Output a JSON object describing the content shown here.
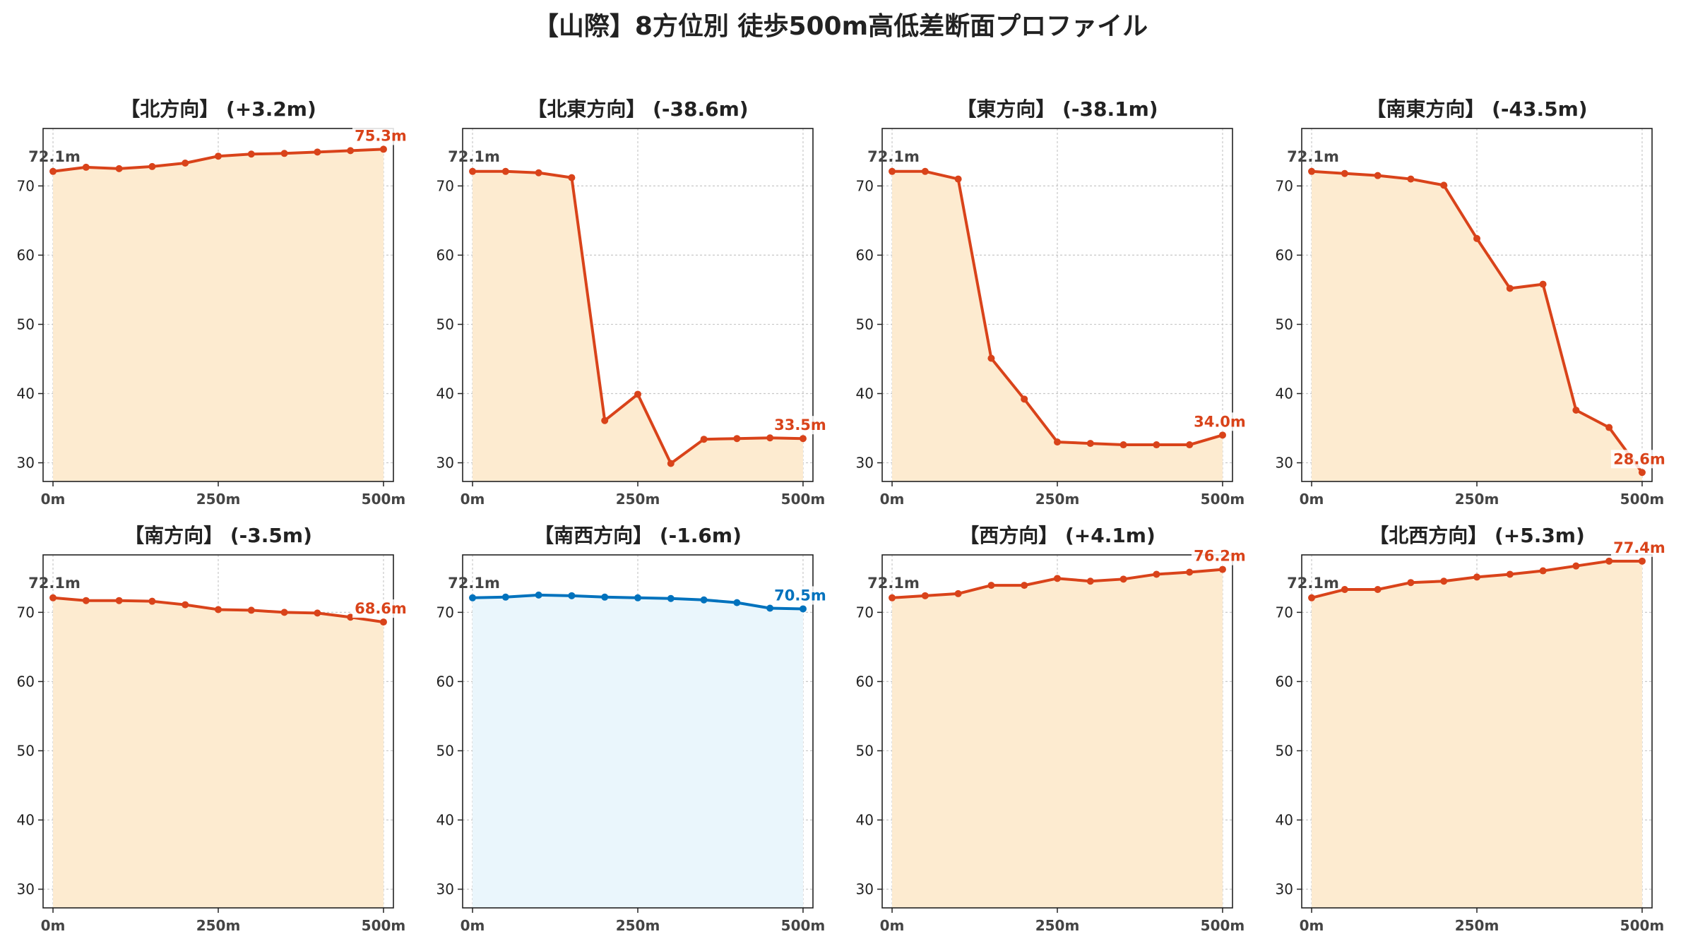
{
  "title": "【山際】8方位別 徒歩500m高低差断面プロファイル",
  "chart_data": [
    {
      "type": "line",
      "title": "【北方向】 (+3.2m)",
      "start_label": "72.1m",
      "end_label": "75.3m",
      "color": "#d9431a",
      "fill": "#fdebd0",
      "x": [
        0,
        50,
        100,
        150,
        200,
        250,
        300,
        350,
        400,
        450,
        500
      ],
      "values": [
        72.1,
        72.7,
        72.5,
        72.8,
        73.3,
        74.3,
        74.6,
        74.7,
        74.9,
        75.1,
        75.3
      ]
    },
    {
      "type": "line",
      "title": "【北東方向】 (-38.6m)",
      "start_label": "72.1m",
      "end_label": "33.5m",
      "color": "#d9431a",
      "fill": "#fdebd0",
      "x": [
        0,
        50,
        100,
        150,
        200,
        250,
        300,
        350,
        400,
        450,
        500
      ],
      "values": [
        72.1,
        72.1,
        71.9,
        71.2,
        36.1,
        39.9,
        29.9,
        33.4,
        33.5,
        33.6,
        33.5
      ]
    },
    {
      "type": "line",
      "title": "【東方向】 (-38.1m)",
      "start_label": "72.1m",
      "end_label": "34.0m",
      "color": "#d9431a",
      "fill": "#fdebd0",
      "x": [
        0,
        50,
        100,
        150,
        200,
        250,
        300,
        350,
        400,
        450,
        500
      ],
      "values": [
        72.1,
        72.1,
        71.0,
        45.1,
        39.2,
        33.0,
        32.8,
        32.6,
        32.6,
        32.6,
        34.0
      ]
    },
    {
      "type": "line",
      "title": "【南東方向】 (-43.5m)",
      "start_label": "72.1m",
      "end_label": "28.6m",
      "color": "#d9431a",
      "fill": "#fdebd0",
      "x": [
        0,
        50,
        100,
        150,
        200,
        250,
        300,
        350,
        400,
        450,
        500
      ],
      "values": [
        72.1,
        71.8,
        71.5,
        71.0,
        70.1,
        62.4,
        55.2,
        55.8,
        37.6,
        35.1,
        28.6
      ]
    },
    {
      "type": "line",
      "title": "【南方向】 (-3.5m)",
      "start_label": "72.1m",
      "end_label": "68.6m",
      "color": "#d9431a",
      "fill": "#fdebd0",
      "x": [
        0,
        50,
        100,
        150,
        200,
        250,
        300,
        350,
        400,
        450,
        500
      ],
      "values": [
        72.1,
        71.7,
        71.7,
        71.6,
        71.1,
        70.4,
        70.3,
        70.0,
        69.9,
        69.3,
        68.6
      ]
    },
    {
      "type": "line",
      "title": "【南西方向】 (-1.6m)",
      "start_label": "72.1m",
      "end_label": "70.5m",
      "color": "#0072bd",
      "fill": "#eaf6fc",
      "x": [
        0,
        50,
        100,
        150,
        200,
        250,
        300,
        350,
        400,
        450,
        500
      ],
      "values": [
        72.1,
        72.2,
        72.5,
        72.4,
        72.2,
        72.1,
        72.0,
        71.8,
        71.4,
        70.6,
        70.5
      ]
    },
    {
      "type": "line",
      "title": "【西方向】 (+4.1m)",
      "start_label": "72.1m",
      "end_label": "76.2m",
      "color": "#d9431a",
      "fill": "#fdebd0",
      "x": [
        0,
        50,
        100,
        150,
        200,
        250,
        300,
        350,
        400,
        450,
        500
      ],
      "values": [
        72.1,
        72.4,
        72.7,
        73.9,
        73.9,
        74.9,
        74.5,
        74.8,
        75.5,
        75.8,
        76.2
      ]
    },
    {
      "type": "line",
      "title": "【北西方向】 (+5.3m)",
      "start_label": "72.1m",
      "end_label": "77.4m",
      "color": "#d9431a",
      "fill": "#fdebd0",
      "x": [
        0,
        50,
        100,
        150,
        200,
        250,
        300,
        350,
        400,
        450,
        500
      ],
      "values": [
        72.1,
        73.3,
        73.3,
        74.3,
        74.5,
        75.1,
        75.5,
        76.0,
        76.7,
        77.4,
        77.4
      ]
    }
  ],
  "axes": {
    "xlim": [
      -15,
      515
    ],
    "ylim": [
      27.3,
      78.3
    ],
    "x_ticks": [
      0,
      250,
      500
    ],
    "x_tick_labels": [
      "0m",
      "250m",
      "500m"
    ],
    "y_ticks": [
      30,
      40,
      50,
      60,
      70
    ],
    "y_tick_labels": [
      "30",
      "40",
      "50",
      "60",
      "70"
    ],
    "grid": true
  }
}
